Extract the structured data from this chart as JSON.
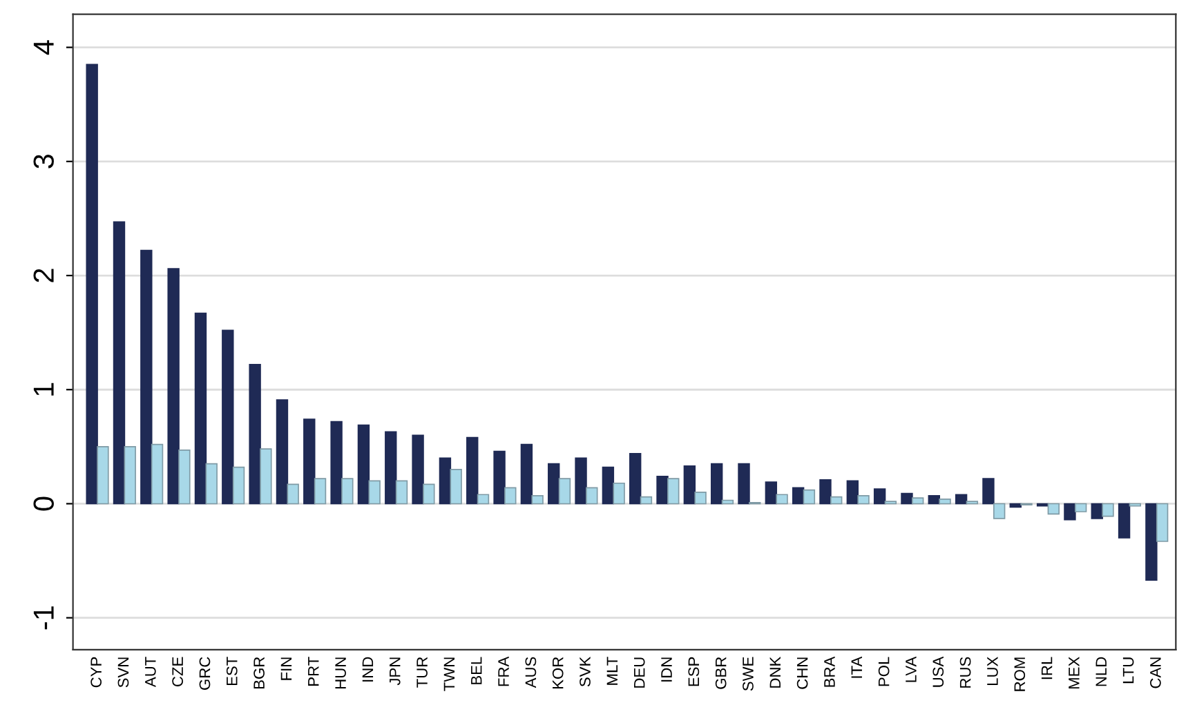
{
  "chart_data": {
    "type": "bar",
    "categories": [
      "CYP",
      "SVN",
      "AUT",
      "CZE",
      "GRC",
      "EST",
      "BGR",
      "FIN",
      "PRT",
      "HUN",
      "IND",
      "JPN",
      "TUR",
      "TWN",
      "BEL",
      "FRA",
      "AUS",
      "KOR",
      "SVK",
      "MLT",
      "DEU",
      "IDN",
      "ESP",
      "GBR",
      "SWE",
      "DNK",
      "CHN",
      "BRA",
      "ITA",
      "POL",
      "LVA",
      "USA",
      "RUS",
      "LUX",
      "ROM",
      "IRL",
      "MEX",
      "NLD",
      "LTU",
      "CAN"
    ],
    "series": [
      {
        "color": "#1f2a55",
        "values": [
          3.85,
          2.47,
          2.22,
          2.06,
          1.67,
          1.52,
          1.22,
          0.91,
          0.74,
          0.72,
          0.69,
          0.63,
          0.6,
          0.4,
          0.58,
          0.46,
          0.52,
          0.35,
          0.4,
          0.32,
          0.44,
          0.24,
          0.33,
          0.35,
          0.35,
          0.19,
          0.14,
          0.21,
          0.2,
          0.13,
          0.09,
          0.07,
          0.08,
          0.22,
          -0.03,
          -0.02,
          -0.14,
          -0.13,
          -0.3,
          -0.67
        ]
      },
      {
        "color": "#a8d8e8",
        "values": [
          0.5,
          0.5,
          0.52,
          0.47,
          0.35,
          0.32,
          0.48,
          0.17,
          0.22,
          0.22,
          0.2,
          0.2,
          0.17,
          0.3,
          0.08,
          0.14,
          0.07,
          0.22,
          0.14,
          0.18,
          0.06,
          0.22,
          0.1,
          0.03,
          0.01,
          0.08,
          0.12,
          0.06,
          0.07,
          0.02,
          0.05,
          0.04,
          0.02,
          -0.13,
          -0.01,
          -0.09,
          -0.07,
          -0.11,
          -0.02,
          -0.33
        ]
      }
    ],
    "ylim": [
      -1.28,
      4.29
    ],
    "yticks": [
      -1,
      0,
      1,
      2,
      3,
      4
    ],
    "grid": "y"
  }
}
